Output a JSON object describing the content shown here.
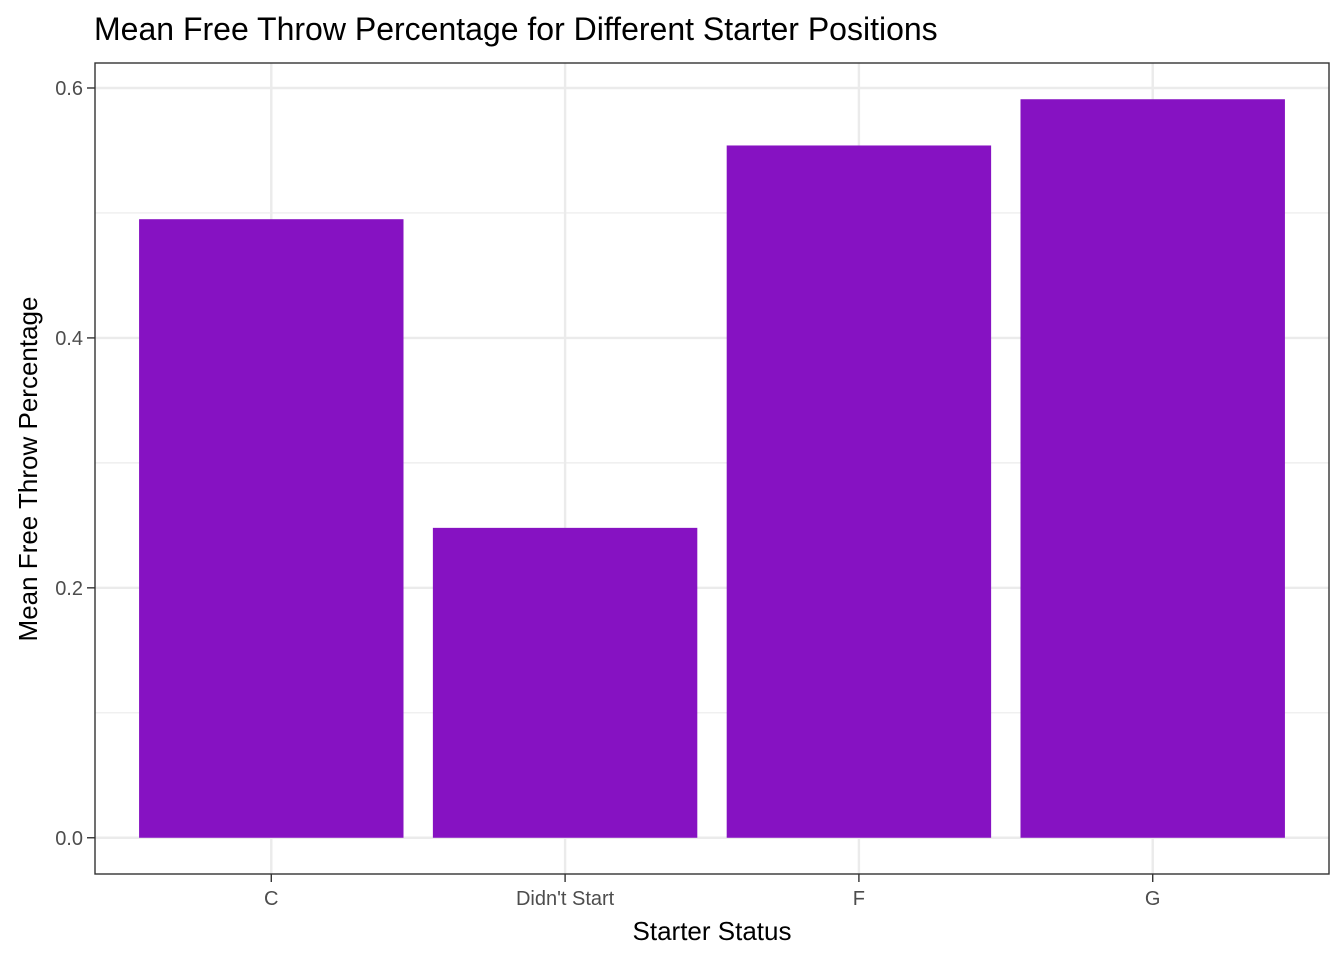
{
  "chart_data": {
    "type": "bar",
    "title": "Mean Free Throw Percentage for Different Starter Positions",
    "xlabel": "Starter Status",
    "ylabel": "Mean Free Throw Percentage",
    "categories": [
      "C",
      "Didn't Start",
      "F",
      "G"
    ],
    "values": [
      0.495,
      0.248,
      0.554,
      0.591
    ],
    "ylim": [
      -0.029,
      0.62
    ],
    "y_ticks": [
      0.0,
      0.2,
      0.4,
      0.6
    ],
    "y_tick_labels": [
      "0.0",
      "0.2",
      "0.4",
      "0.6"
    ],
    "grid": true,
    "legend": "none",
    "bar_color": "#8612C2",
    "gridline_color": "#EBEBEB",
    "panel_border_color": "#333333"
  }
}
